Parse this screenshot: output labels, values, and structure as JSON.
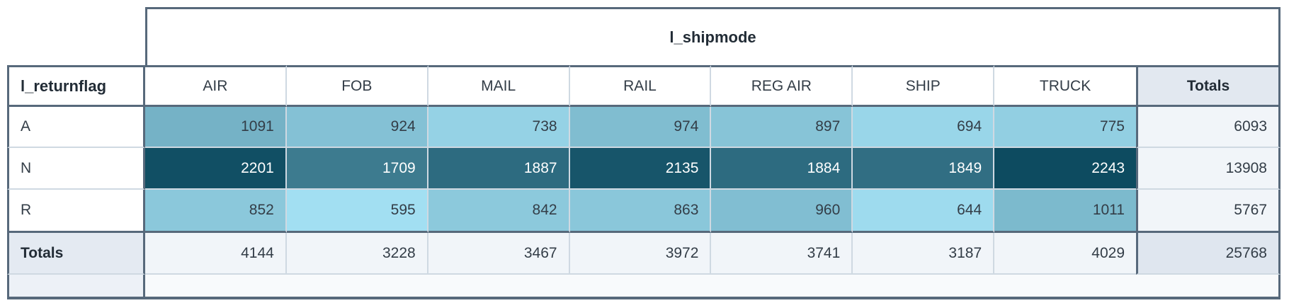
{
  "chart_data": {
    "type": "heatmap",
    "x_dimension": "l_shipmode",
    "y_dimension": "l_returnflag",
    "columns": [
      "AIR",
      "FOB",
      "MAIL",
      "RAIL",
      "REG AIR",
      "SHIP",
      "TRUCK"
    ],
    "rows": [
      "A",
      "N",
      "R"
    ],
    "values": [
      [
        1091,
        924,
        738,
        974,
        897,
        694,
        775
      ],
      [
        2201,
        1709,
        1887,
        2135,
        1884,
        1849,
        2243
      ],
      [
        852,
        595,
        842,
        863,
        960,
        644,
        1011
      ]
    ],
    "row_totals": [
      6093,
      13908,
      5767
    ],
    "column_totals": [
      4144,
      3228,
      3467,
      3972,
      3741,
      3187,
      4029
    ],
    "grand_total": 25768,
    "totals_label": "Totals",
    "legend_position": "none",
    "color_scale": {
      "min_value": 595,
      "max_value": 2243,
      "min_color": "#a2dff2",
      "max_color": "#0d4b60",
      "text_dark": "#333d47",
      "text_light": "#ffffff"
    }
  },
  "colors": {
    "border_dark": "#57697b",
    "border_light": "#cfd9e2",
    "totals_column_header_bg": "#e2e8f0",
    "totals_row_header_bg": "#e4eaf2",
    "totals_cell_bg": "#f1f5f9",
    "grand_total_bg": "#dfe6ef",
    "footer_left_bg": "#edf1f7",
    "footer_bg": "#f8fafc",
    "background": "#ffffff"
  }
}
